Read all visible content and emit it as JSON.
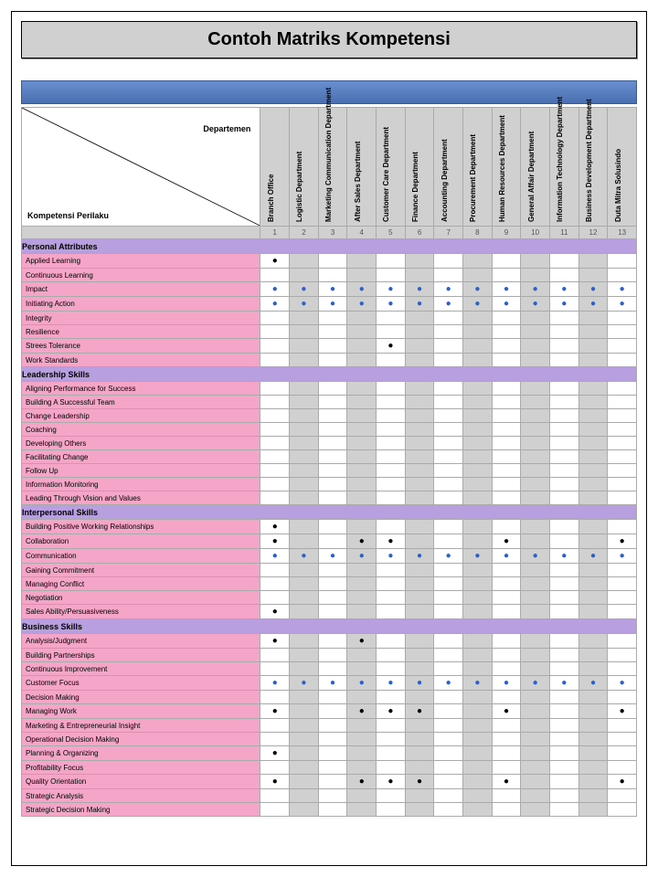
{
  "title": "Contoh Matriks Kompetensi",
  "diag_top": "Departemen",
  "diag_bottom": "Kompetensi Perilaku",
  "departments": [
    "Branch Office",
    "Logistic Department",
    "Marketing Communication Department",
    "After Sales Department",
    "Customer Care Department",
    "Finance Department",
    "Accounting Department",
    "Procurement Department",
    "Human Resources Department",
    "General Affair Department",
    "Information Technology Department",
    "Business Development Department",
    "Duta Mitra Solusindo"
  ],
  "dept_numbers": [
    "1",
    "2",
    "3",
    "4",
    "5",
    "6",
    "7",
    "8",
    "9",
    "10",
    "11",
    "12",
    "13"
  ],
  "sections": [
    {
      "name": "Personal Attributes",
      "rows": [
        {
          "label": "Applied Learning",
          "marks": [
            {
              "i": 0,
              "c": "black"
            }
          ]
        },
        {
          "label": "Continuous Learning",
          "marks": []
        },
        {
          "label": "Impact",
          "marks": [
            {
              "i": 0,
              "c": "blue"
            },
            {
              "i": 1,
              "c": "blue"
            },
            {
              "i": 2,
              "c": "blue"
            },
            {
              "i": 3,
              "c": "blue"
            },
            {
              "i": 4,
              "c": "blue"
            },
            {
              "i": 5,
              "c": "blue"
            },
            {
              "i": 6,
              "c": "blue"
            },
            {
              "i": 7,
              "c": "blue"
            },
            {
              "i": 8,
              "c": "blue"
            },
            {
              "i": 9,
              "c": "blue"
            },
            {
              "i": 10,
              "c": "blue"
            },
            {
              "i": 11,
              "c": "blue"
            },
            {
              "i": 12,
              "c": "blue"
            }
          ]
        },
        {
          "label": "Initiating Action",
          "marks": [
            {
              "i": 0,
              "c": "blue"
            },
            {
              "i": 1,
              "c": "blue"
            },
            {
              "i": 2,
              "c": "blue"
            },
            {
              "i": 3,
              "c": "blue"
            },
            {
              "i": 4,
              "c": "blue"
            },
            {
              "i": 5,
              "c": "blue"
            },
            {
              "i": 6,
              "c": "blue"
            },
            {
              "i": 7,
              "c": "blue"
            },
            {
              "i": 8,
              "c": "blue"
            },
            {
              "i": 9,
              "c": "blue"
            },
            {
              "i": 10,
              "c": "blue"
            },
            {
              "i": 11,
              "c": "blue"
            },
            {
              "i": 12,
              "c": "blue"
            }
          ]
        },
        {
          "label": "Integrity",
          "marks": []
        },
        {
          "label": "Resilience",
          "marks": []
        },
        {
          "label": "Strees Tolerance",
          "marks": [
            {
              "i": 4,
              "c": "black"
            }
          ]
        },
        {
          "label": "Work Standards",
          "marks": []
        }
      ]
    },
    {
      "name": "Leadership Skills",
      "rows": [
        {
          "label": "Aligning Performance for Success",
          "marks": []
        },
        {
          "label": "Building A Successful Team",
          "marks": []
        },
        {
          "label": "Change Leadership",
          "marks": []
        },
        {
          "label": "Coaching",
          "marks": []
        },
        {
          "label": "Developing Others",
          "marks": []
        },
        {
          "label": "Facilitating Change",
          "marks": []
        },
        {
          "label": "Follow Up",
          "marks": []
        },
        {
          "label": "Information Monitoring",
          "marks": []
        },
        {
          "label": "Leading Through Vision and Values",
          "marks": []
        }
      ]
    },
    {
      "name": "Interpersonal Skills",
      "rows": [
        {
          "label": "Building Positive Working Relationships",
          "marks": [
            {
              "i": 0,
              "c": "black"
            }
          ]
        },
        {
          "label": "Collaboration",
          "marks": [
            {
              "i": 0,
              "c": "black"
            },
            {
              "i": 3,
              "c": "black"
            },
            {
              "i": 4,
              "c": "black"
            },
            {
              "i": 8,
              "c": "black"
            },
            {
              "i": 12,
              "c": "black"
            }
          ]
        },
        {
          "label": "Communication",
          "marks": [
            {
              "i": 0,
              "c": "blue"
            },
            {
              "i": 1,
              "c": "blue"
            },
            {
              "i": 2,
              "c": "blue"
            },
            {
              "i": 3,
              "c": "blue"
            },
            {
              "i": 4,
              "c": "blue"
            },
            {
              "i": 5,
              "c": "blue"
            },
            {
              "i": 6,
              "c": "blue"
            },
            {
              "i": 7,
              "c": "blue"
            },
            {
              "i": 8,
              "c": "blue"
            },
            {
              "i": 9,
              "c": "blue"
            },
            {
              "i": 10,
              "c": "blue"
            },
            {
              "i": 11,
              "c": "blue"
            },
            {
              "i": 12,
              "c": "blue"
            }
          ]
        },
        {
          "label": "Gaining Commitment",
          "marks": []
        },
        {
          "label": "Managing Conflict",
          "marks": []
        },
        {
          "label": "Negotiation",
          "marks": []
        },
        {
          "label": "Sales Ability/Persuasiveness",
          "marks": [
            {
              "i": 0,
              "c": "black"
            }
          ]
        }
      ]
    },
    {
      "name": "Business Skills",
      "rows": [
        {
          "label": "Analysis/Judgment",
          "marks": [
            {
              "i": 0,
              "c": "black"
            },
            {
              "i": 3,
              "c": "black"
            }
          ]
        },
        {
          "label": "Building Partnerships",
          "marks": []
        },
        {
          "label": "Continuous Improvement",
          "marks": []
        },
        {
          "label": "Customer Focus",
          "marks": [
            {
              "i": 0,
              "c": "blue"
            },
            {
              "i": 1,
              "c": "blue"
            },
            {
              "i": 2,
              "c": "blue"
            },
            {
              "i": 3,
              "c": "blue"
            },
            {
              "i": 4,
              "c": "blue"
            },
            {
              "i": 5,
              "c": "blue"
            },
            {
              "i": 6,
              "c": "blue"
            },
            {
              "i": 7,
              "c": "blue"
            },
            {
              "i": 8,
              "c": "blue"
            },
            {
              "i": 9,
              "c": "blue"
            },
            {
              "i": 10,
              "c": "blue"
            },
            {
              "i": 11,
              "c": "blue"
            },
            {
              "i": 12,
              "c": "blue"
            }
          ]
        },
        {
          "label": "Decision Making",
          "marks": []
        },
        {
          "label": "Managing Work",
          "marks": [
            {
              "i": 0,
              "c": "black"
            },
            {
              "i": 3,
              "c": "black"
            },
            {
              "i": 4,
              "c": "black"
            },
            {
              "i": 5,
              "c": "black"
            },
            {
              "i": 8,
              "c": "black"
            },
            {
              "i": 12,
              "c": "black"
            }
          ]
        },
        {
          "label": "Marketing & Entrepreneurial Insight",
          "marks": []
        },
        {
          "label": "Operational Decision Making",
          "marks": []
        },
        {
          "label": "Planning & Organizing",
          "marks": [
            {
              "i": 0,
              "c": "black"
            }
          ]
        },
        {
          "label": "Profitability Focus",
          "marks": []
        },
        {
          "label": "Quality Orientation",
          "marks": [
            {
              "i": 0,
              "c": "black"
            },
            {
              "i": 3,
              "c": "black"
            },
            {
              "i": 4,
              "c": "black"
            },
            {
              "i": 5,
              "c": "black"
            },
            {
              "i": 8,
              "c": "black"
            },
            {
              "i": 12,
              "c": "black"
            }
          ]
        },
        {
          "label": "Strategic Analysis",
          "marks": []
        },
        {
          "label": "Strategic Decision Making",
          "marks": []
        }
      ]
    }
  ],
  "colors": {
    "section_bg": "#b89fe0",
    "label_bg": "#f5a6c8",
    "grey_bg": "#d0d0d0",
    "dot_black": "#000000",
    "dot_blue": "#2a5fd0"
  }
}
